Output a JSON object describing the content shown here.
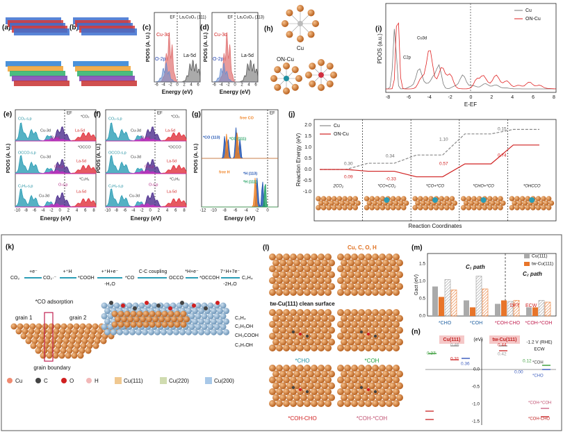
{
  "top": {
    "a": {
      "label": "(a)"
    },
    "b": {
      "label": "(b)"
    },
    "c": {
      "label": "(c)",
      "ef": "EF",
      "surface": "La₂CuO₄ (111)",
      "cu": "Cu-3d",
      "o": "O-2p",
      "la": "La-5d",
      "xticks": [
        "-6",
        "-4",
        "-2",
        "0",
        "2",
        "4",
        "6"
      ],
      "x_label": "Energy (eV)",
      "y_label": "PDOS (A. U.)"
    },
    "d": {
      "label": "(d)",
      "ef": "EF",
      "surface": "La₂CuO₄ (113)",
      "cu": "Cu-3d",
      "o": "O-2p",
      "la": "La-5d",
      "xticks": [
        "-6",
        "-4",
        "-2",
        "0",
        "2",
        "4",
        "6"
      ],
      "x_label": "Energy (eV)",
      "y_label": "PDOS (A. U.)"
    },
    "h": {
      "label": "(h)",
      "cu": "Cu",
      "on_cu": "ON-Cu"
    },
    "i": {
      "label": "(i)",
      "legend": [
        "Cu",
        "ON-Cu"
      ],
      "y_label": "PDOS (a.u.)",
      "x_label": "E-EF",
      "xticks": [
        "-8",
        "-6",
        "-4",
        "-2",
        "0",
        "2",
        "4",
        "6",
        "8"
      ],
      "c2p": "C2p",
      "cu3d": "Cu3d"
    },
    "e": {
      "label": "(e)",
      "ef": "EF",
      "y_label": "PDOS (A. U.)",
      "x_label": "Energy (eV)",
      "xticks": [
        "-10",
        "-8",
        "-6",
        "-4",
        "-2",
        "0",
        "2",
        "4",
        "6",
        "8"
      ],
      "annotations": [
        "CO₂-s,p",
        "Cu-3d",
        "*CO₂",
        "O-s,p",
        "La-5d",
        "*OCCO",
        "OCCO-s,p",
        "Cu-3d",
        "O-s,p",
        "La-5d",
        "C₂H₄-s,p",
        "Cu-3d",
        "O-s,p",
        "La-5d",
        "*C₂H₄"
      ]
    },
    "f": {
      "label": "(f)",
      "ef": "EF",
      "y_label": "PDOS (A. U.)",
      "x_label": "Energy (eV)",
      "xticks": [
        "-10",
        "-8",
        "-6",
        "-4",
        "-2",
        "0",
        "2",
        "4",
        "6",
        "8"
      ],
      "annotations": [
        "CO₂-s,p",
        "Cu-3d",
        "*CO₂",
        "O-s,p",
        "La-5d",
        "*OCCO",
        "OCCO-s,p",
        "Cu-3d",
        "O-s,p",
        "La-5d",
        "C₂H₄-s,p",
        "Cu-3d",
        "O-s,p",
        "La-5d",
        "*C₂H₄"
      ]
    },
    "g": {
      "label": "(g)",
      "ef": "EF",
      "y_label": "PDOS (A. U.)",
      "x_label": "Energy (eV)",
      "xticks": [
        "-12",
        "-10",
        "-8",
        "-6",
        "-4",
        "-2",
        "0"
      ],
      "annotations": [
        "free CO",
        "*CO (113)",
        "*CO (111)",
        "free H",
        "*H (113)",
        "*H (111)"
      ]
    },
    "j": {
      "label": "(j)",
      "legend": [
        "Cu",
        "ON-Cu"
      ],
      "y_label": "Reaction Energy (eV)",
      "x_label": "Reaction Coordinates",
      "yticks": [
        "2.0",
        "1.5",
        "1.0",
        "0.5",
        "0.0",
        "-0.5",
        "-1.0"
      ],
      "cu_labels": [
        "0.30",
        "0.34",
        "1.10",
        "0.15"
      ],
      "oncu_labels": [
        "0.09",
        "-0.33",
        "0.57",
        "0.74"
      ],
      "states": [
        "2CO₂",
        "*CO+CO₂",
        "*CO+*CO",
        "*CHO+*CO",
        "*OHCCO"
      ]
    }
  },
  "bottom": {
    "k": {
      "label": "(k)",
      "scheme": [
        "CO₂",
        "+e⁻",
        "CO₂·⁻",
        "+⁺H",
        "*COOH",
        "+⁺H+e⁻",
        "-H₂O",
        "*CO",
        "C-C coupling",
        "OCCO",
        "*H+e⁻",
        "*OCCOH",
        "7⁺H+7e⁻",
        "-2H₂O",
        "C₂H₄"
      ],
      "adsorption": "*CO adsorption",
      "grain1": "grain 1",
      "grain2": "grain 2",
      "boundary": "grain boundary",
      "products": [
        "C₂H₄",
        "C₂H₅OH",
        "CH₃COOH",
        "C₃H₇OH"
      ],
      "legend": [
        "Cu",
        "C",
        "O",
        "H",
        "Cu(111)",
        "Cu(220)",
        "Cu(200)"
      ]
    },
    "l": {
      "label": "(l)",
      "elements": "Cu, C, O, H",
      "clean": "tw-Cu(111) clean surface",
      "states": [
        "*CHO",
        "*COH",
        "*COH-CHO",
        "*COH-*COH"
      ]
    },
    "m": {
      "label": "(m)",
      "y_label": "Gact (eV)",
      "legend": [
        "Cu(111)",
        "tw-Cu(111)"
      ],
      "c1": "C₁ path",
      "c2": "C₂ path",
      "methods": [
        "DFT",
        "ECW"
      ],
      "yticks": [
        "1.5",
        "1.0",
        "0.5",
        "0.0"
      ],
      "categories": [
        "*CHO",
        "*COH",
        "*COH-CHO",
        "*COH-*COH"
      ],
      "values": [
        [
          0.85,
          0.55,
          1.05,
          0.75
        ],
        [
          0.45,
          0.25,
          1.15,
          0.78
        ],
        [
          0.35,
          0.45,
          0.42,
          0.45
        ],
        [
          0.25,
          0.25,
          0.45,
          0.4
        ]
      ]
    },
    "n": {
      "label": "(n)",
      "cu": "Cu(111)",
      "tw": "tw-Cu(111)",
      "unit": "(eV)",
      "potential": "-1.2 V (RHE)",
      "method": "ECW",
      "yticks": [
        "0.0",
        "-0.5",
        "-1.0",
        "-1.5"
      ],
      "numbers": [
        "0.37",
        "0.46",
        "0.31",
        "0.36",
        "0.44",
        "0.42",
        "0.12",
        "0.00"
      ],
      "states": [
        "*COH",
        "*CHO",
        "*COH-*COH",
        "*COH-CHO"
      ]
    }
  }
}
